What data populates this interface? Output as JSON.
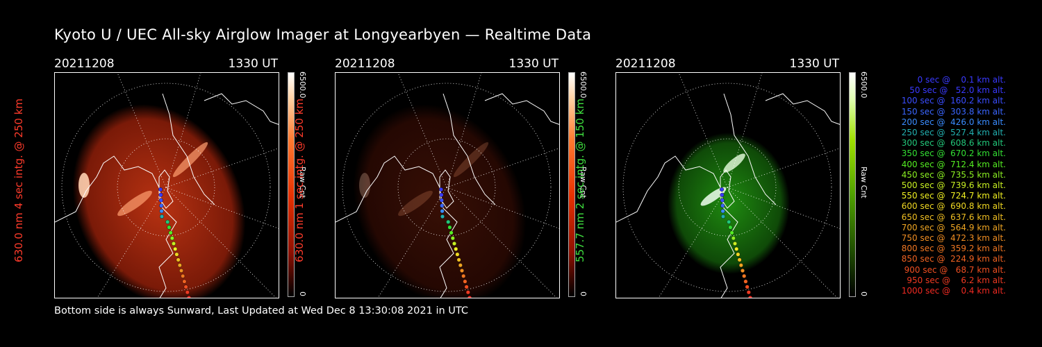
{
  "title": "Kyoto U / UEC All-sky Airglow Imager at Longyearbyen — Realtime Data",
  "footer": "Bottom side is always Sunward, Last Updated at Wed Dec  8 13:30:08 2021 in UTC",
  "panels": [
    {
      "date": "20211208",
      "time": "1330 UT",
      "side_label": "630.0 nm 4 sec intg. @ 250 km",
      "side_color": "#ff3b2b",
      "cbar_max": "6500.0",
      "cbar_unit": "Raw Cnt",
      "cbar_min": "0",
      "emission": "red",
      "brightness": 1.0
    },
    {
      "date": "20211208",
      "time": "1330 UT",
      "side_label": "630.0 nm 1 sec intg. @ 250 km",
      "side_color": "#ff3b2b",
      "cbar_max": "6500.0",
      "cbar_unit": "Raw Cnt",
      "cbar_min": "0",
      "emission": "red",
      "brightness": 0.3
    },
    {
      "date": "20211208",
      "time": "1330 UT",
      "side_label": "557.7 nm 2 sec intg. @ 150 km",
      "side_color": "#3fe03f",
      "cbar_max": "6500.0",
      "cbar_unit": "Raw Cnt",
      "cbar_min": "0",
      "emission": "green",
      "brightness": 1.0
    }
  ],
  "legend": [
    {
      "text": "   0 sec @    0.1 km alt.",
      "color": "#3a3aff"
    },
    {
      "text": "  50 sec @   52.0 km alt.",
      "color": "#3a3aff"
    },
    {
      "text": " 100 sec @  160.2 km alt.",
      "color": "#3a4dff"
    },
    {
      "text": " 150 sec @  303.8 km alt.",
      "color": "#3a66ff"
    },
    {
      "text": " 200 sec @  426.0 km alt.",
      "color": "#3a8cff"
    },
    {
      "text": " 250 sec @  527.4 km alt.",
      "color": "#22b0b0"
    },
    {
      "text": " 300 sec @  608.6 km alt.",
      "color": "#22c87a"
    },
    {
      "text": " 350 sec @  670.2 km alt.",
      "color": "#33e033"
    },
    {
      "text": " 400 sec @  712.4 km alt.",
      "color": "#55ee22"
    },
    {
      "text": " 450 sec @  735.5 km alt.",
      "color": "#8cf022"
    },
    {
      "text": " 500 sec @  739.6 km alt.",
      "color": "#c8f022"
    },
    {
      "text": " 550 sec @  724.7 km alt.",
      "color": "#f0f022"
    },
    {
      "text": " 600 sec @  690.8 km alt.",
      "color": "#f0d822"
    },
    {
      "text": " 650 sec @  637.6 km alt.",
      "color": "#f0bf22"
    },
    {
      "text": " 700 sec @  564.9 km alt.",
      "color": "#f0a622"
    },
    {
      "text": " 750 sec @  472.3 km alt.",
      "color": "#f08e22"
    },
    {
      "text": " 800 sec @  359.2 km alt.",
      "color": "#f07722"
    },
    {
      "text": " 850 sec @  224.9 km alt.",
      "color": "#f06322"
    },
    {
      "text": " 900 sec @   68.7 km alt.",
      "color": "#f04f22"
    },
    {
      "text": " 950 sec @    6.2 km alt.",
      "color": "#f03a22"
    },
    {
      "text": "1000 sec @    0.4 km alt.",
      "color": "#f02a22"
    }
  ]
}
